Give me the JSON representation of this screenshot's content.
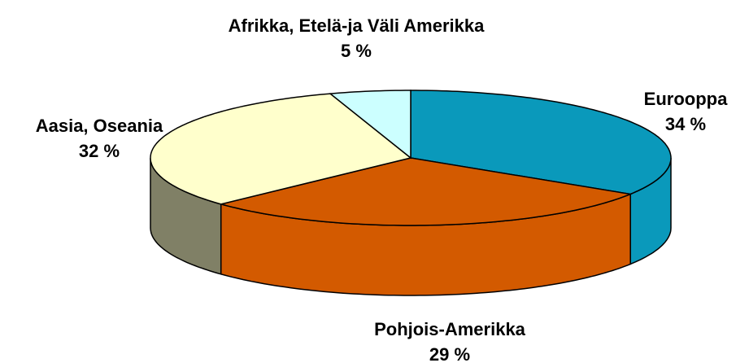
{
  "chart_data": {
    "type": "pie3d",
    "categories": [
      "Eurooppa",
      "Pohjois-Amerikka",
      "Aasia, Oseania",
      "Afrikka, Etelä-ja Väli Amerikka"
    ],
    "values": [
      34,
      29,
      32,
      5
    ],
    "value_labels": [
      "34 %",
      "29 %",
      "32 %",
      "5 %"
    ],
    "colors": [
      "#0A99BB",
      "#D35A00",
      "#FFFFCC",
      "#CCFFFF"
    ],
    "side_colors": [
      "#0A99BB",
      "#D35A00",
      "#808066",
      "#CCFFFF"
    ]
  }
}
